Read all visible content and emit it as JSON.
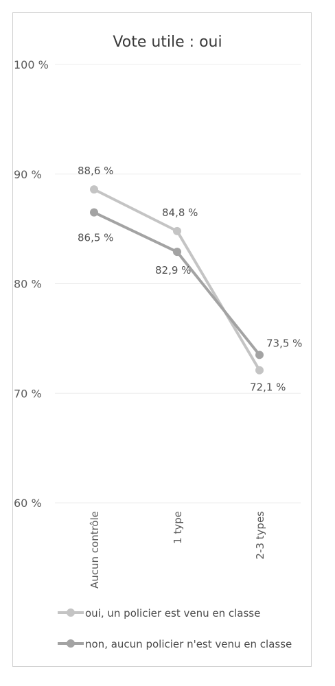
{
  "chart_data": {
    "type": "line",
    "title": "Vote utile : oui",
    "categories": [
      "Aucun contrôle",
      "1 type",
      "2-3 types"
    ],
    "ylim": [
      60,
      100
    ],
    "yticks": [
      100,
      90,
      80,
      70,
      60
    ],
    "ytick_labels": [
      "100 %",
      "90 %",
      "80 %",
      "70 %",
      "60 %"
    ],
    "grid": true,
    "legend_position": "bottom",
    "series": [
      {
        "name": "oui, un policier est venu en classe",
        "values": [
          88.6,
          84.8,
          72.1
        ],
        "labels": [
          "88,6 %",
          "84,8 %",
          "72,1 %"
        ],
        "color": "#c4c4c4"
      },
      {
        "name": "non, aucun policier n'est venu en classe",
        "values": [
          86.5,
          82.9,
          73.5
        ],
        "labels": [
          "86,5 %",
          "82,9 %",
          "73,5 %"
        ],
        "color": "#a3a3a3"
      }
    ]
  }
}
